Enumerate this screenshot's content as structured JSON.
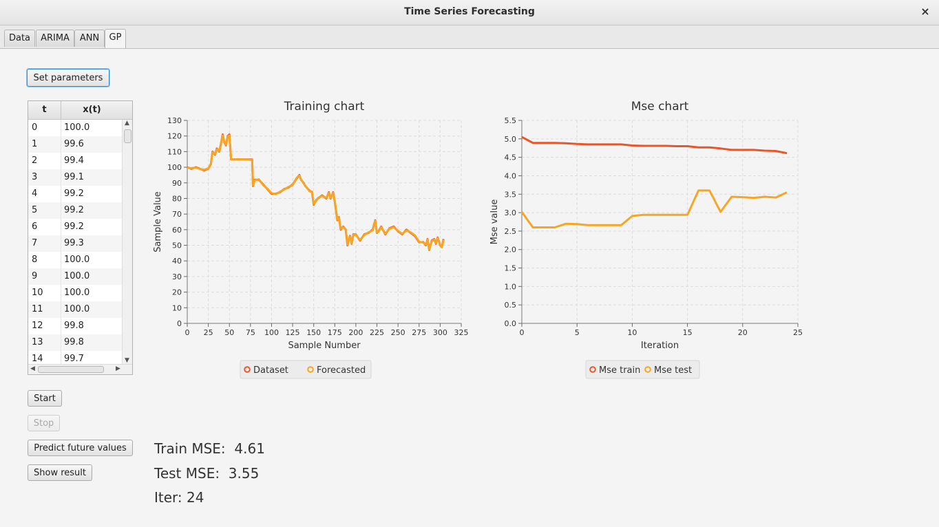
{
  "window": {
    "title": "Time Series Forecasting",
    "close_glyph": "×"
  },
  "tabs": [
    {
      "label": "Data"
    },
    {
      "label": "ARIMA"
    },
    {
      "label": "ANN"
    },
    {
      "label": "GP",
      "active": true
    }
  ],
  "buttons": {
    "set_parameters": "Set parameters",
    "start": "Start",
    "stop": "Stop",
    "predict": "Predict future values",
    "show_result": "Show result"
  },
  "table": {
    "headers": [
      "t",
      "x(t)"
    ],
    "rows": [
      [
        "0",
        "100.0"
      ],
      [
        "1",
        "99.6"
      ],
      [
        "2",
        "99.4"
      ],
      [
        "3",
        "99.1"
      ],
      [
        "4",
        "99.2"
      ],
      [
        "5",
        "99.2"
      ],
      [
        "6",
        "99.2"
      ],
      [
        "7",
        "99.3"
      ],
      [
        "8",
        "100.0"
      ],
      [
        "9",
        "100.0"
      ],
      [
        "10",
        "100.0"
      ],
      [
        "11",
        "100.0"
      ],
      [
        "12",
        "99.8"
      ],
      [
        "13",
        "99.8"
      ],
      [
        "14",
        "99.7"
      ]
    ]
  },
  "stats": {
    "train_label": "Train MSE:",
    "train_value": "4.61",
    "test_label": "Test MSE:",
    "test_value": "3.55",
    "iter_label": "Iter:",
    "iter_value": "24"
  },
  "chart_data": [
    {
      "type": "line",
      "title": "Training chart",
      "xlabel": "Sample Number",
      "ylabel": "Sample Value",
      "xlim": [
        0,
        325
      ],
      "ylim": [
        0,
        130
      ],
      "xticks": [
        0,
        25,
        50,
        75,
        100,
        125,
        150,
        175,
        200,
        225,
        250,
        275,
        300,
        325
      ],
      "yticks": [
        0,
        10,
        20,
        30,
        40,
        50,
        60,
        70,
        80,
        90,
        100,
        110,
        120,
        130
      ],
      "grid": true,
      "legend_position": "bottom",
      "series": [
        {
          "name": "Dataset",
          "color": "#e8572a",
          "x": [
            0,
            5,
            10,
            15,
            20,
            25,
            28,
            30,
            33,
            35,
            38,
            40,
            42,
            44,
            46,
            48,
            50,
            52,
            55,
            60,
            70,
            77,
            78,
            80,
            85,
            90,
            95,
            100,
            105,
            110,
            115,
            120,
            125,
            130,
            133,
            135,
            138,
            140,
            145,
            148,
            150,
            153,
            155,
            160,
            165,
            168,
            170,
            173,
            175,
            178,
            180,
            182,
            185,
            188,
            190,
            193,
            195,
            197,
            200,
            205,
            210,
            215,
            220,
            223,
            225,
            227,
            230,
            235,
            240,
            245,
            250,
            255,
            260,
            265,
            270,
            275,
            280,
            283,
            285,
            287,
            290,
            293,
            295,
            297,
            300,
            302,
            304
          ],
          "y": [
            100,
            99,
            100,
            99,
            98,
            99,
            102,
            110,
            108,
            112,
            110,
            115,
            121,
            116,
            114,
            120,
            121,
            105,
            105,
            105,
            105,
            105,
            88,
            92,
            92,
            89,
            86,
            83,
            83,
            84,
            86,
            87,
            89,
            93,
            95,
            92,
            90,
            88,
            85,
            84,
            76,
            79,
            80,
            82,
            80,
            84,
            80,
            84,
            78,
            66,
            68,
            60,
            62,
            60,
            50,
            56,
            51,
            57,
            57,
            53,
            57,
            58,
            60,
            66,
            58,
            59,
            62,
            57,
            61,
            62,
            59,
            57,
            60,
            58,
            56,
            52,
            52,
            50,
            54,
            47,
            53,
            54,
            51,
            55,
            50,
            49,
            54
          ]
        },
        {
          "name": "Forecasted",
          "color": "#f5a623",
          "x": [
            0,
            5,
            10,
            15,
            20,
            25,
            28,
            30,
            33,
            35,
            38,
            40,
            42,
            44,
            46,
            48,
            50,
            52,
            55,
            60,
            70,
            77,
            78,
            80,
            85,
            90,
            95,
            100,
            105,
            110,
            115,
            120,
            125,
            130,
            133,
            135,
            138,
            140,
            145,
            148,
            150,
            153,
            155,
            160,
            165,
            168,
            170,
            173,
            175,
            178,
            180,
            182,
            185,
            188,
            190,
            193,
            195,
            197,
            200,
            205,
            210,
            215,
            220,
            223,
            225,
            227,
            230,
            235,
            240,
            245,
            250,
            255,
            260,
            265,
            270,
            275,
            280,
            283,
            285,
            287,
            290,
            293,
            295,
            297,
            300,
            302,
            304
          ],
          "y": [
            99.6,
            99.4,
            99.7,
            98.9,
            98.4,
            99.2,
            102.3,
            109.6,
            108.4,
            111.6,
            110.3,
            115.4,
            120.5,
            116.3,
            114.4,
            119.6,
            120.4,
            105.2,
            104.8,
            105.2,
            104.9,
            104.7,
            88.4,
            91.6,
            92.3,
            88.6,
            86.3,
            83.4,
            82.7,
            84.3,
            85.7,
            87.4,
            88.6,
            93.3,
            94.6,
            92.3,
            89.6,
            88.3,
            84.6,
            84.4,
            76.4,
            78.6,
            80.3,
            81.6,
            80.4,
            83.6,
            80.3,
            83.6,
            78.4,
            66.4,
            67.6,
            60.4,
            61.6,
            60.3,
            50.4,
            55.6,
            51.3,
            56.6,
            56.7,
            53.4,
            56.6,
            58.3,
            59.6,
            65.6,
            58.4,
            58.7,
            61.6,
            57.4,
            60.7,
            61.6,
            59.3,
            57.3,
            59.6,
            58.3,
            56.4,
            52.3,
            51.7,
            50.4,
            53.6,
            47.4,
            52.7,
            53.6,
            51.4,
            54.6,
            50.3,
            48.7,
            53.6
          ]
        }
      ]
    },
    {
      "type": "line",
      "title": "Mse chart",
      "xlabel": "Iteration",
      "ylabel": "Mse value",
      "xlim": [
        0,
        25
      ],
      "ylim": [
        0,
        5.5
      ],
      "xticks": [
        0,
        5,
        10,
        15,
        20,
        25
      ],
      "yticks": [
        0.0,
        0.5,
        1.0,
        1.5,
        2.0,
        2.5,
        3.0,
        3.5,
        4.0,
        4.5,
        5.0,
        5.5
      ],
      "grid": true,
      "legend_position": "bottom",
      "series": [
        {
          "name": "Mse train",
          "color": "#e8572a",
          "x": [
            0,
            1,
            2,
            3,
            4,
            5,
            6,
            7,
            8,
            9,
            10,
            11,
            12,
            13,
            14,
            15,
            16,
            17,
            18,
            19,
            20,
            21,
            22,
            23,
            24
          ],
          "y": [
            5.05,
            4.89,
            4.89,
            4.89,
            4.88,
            4.86,
            4.85,
            4.85,
            4.85,
            4.85,
            4.82,
            4.81,
            4.81,
            4.81,
            4.8,
            4.8,
            4.77,
            4.77,
            4.74,
            4.7,
            4.7,
            4.7,
            4.68,
            4.67,
            4.61
          ]
        },
        {
          "name": "Mse test",
          "color": "#f5a623",
          "x": [
            0,
            1,
            2,
            3,
            4,
            5,
            6,
            7,
            8,
            9,
            10,
            11,
            12,
            13,
            14,
            15,
            16,
            17,
            18,
            19,
            20,
            21,
            22,
            23,
            24
          ],
          "y": [
            3.02,
            2.6,
            2.6,
            2.6,
            2.7,
            2.69,
            2.66,
            2.66,
            2.66,
            2.66,
            2.91,
            2.94,
            2.94,
            2.94,
            2.94,
            2.94,
            3.6,
            3.6,
            3.02,
            3.43,
            3.42,
            3.4,
            3.43,
            3.41,
            3.55
          ]
        }
      ]
    }
  ]
}
